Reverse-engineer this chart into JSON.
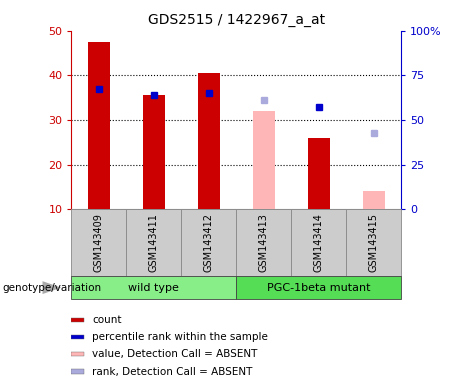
{
  "title": "GDS2515 / 1422967_a_at",
  "samples": [
    "GSM143409",
    "GSM143411",
    "GSM143412",
    "GSM143413",
    "GSM143414",
    "GSM143415"
  ],
  "count_values": [
    47.5,
    35.5,
    40.5,
    null,
    26.0,
    null
  ],
  "count_absent_values": [
    null,
    null,
    null,
    32.0,
    null,
    14.0
  ],
  "rank_values": [
    37.0,
    35.5,
    36.0,
    null,
    33.0,
    null
  ],
  "rank_absent_values": [
    null,
    null,
    null,
    34.5,
    null,
    27.0
  ],
  "ylim_left": [
    10,
    50
  ],
  "ylim_right": [
    0,
    100
  ],
  "yticks_left": [
    10,
    20,
    30,
    40,
    50
  ],
  "yticks_right": [
    0,
    25,
    50,
    75,
    100
  ],
  "yticklabels_right": [
    "0",
    "25",
    "50",
    "75",
    "100%"
  ],
  "bar_width": 0.4,
  "count_color": "#cc0000",
  "count_absent_color": "#ffb6b6",
  "rank_color": "#0000cc",
  "rank_absent_color": "#aaaadd",
  "label_area_color": "#cccccc",
  "wt_color": "#99ee99",
  "mut_color": "#66dd66",
  "legend_items": [
    {
      "label": "count",
      "color": "#cc0000"
    },
    {
      "label": "percentile rank within the sample",
      "color": "#0000cc"
    },
    {
      "label": "value, Detection Call = ABSENT",
      "color": "#ffb6b6"
    },
    {
      "label": "rank, Detection Call = ABSENT",
      "color": "#aaaadd"
    }
  ]
}
